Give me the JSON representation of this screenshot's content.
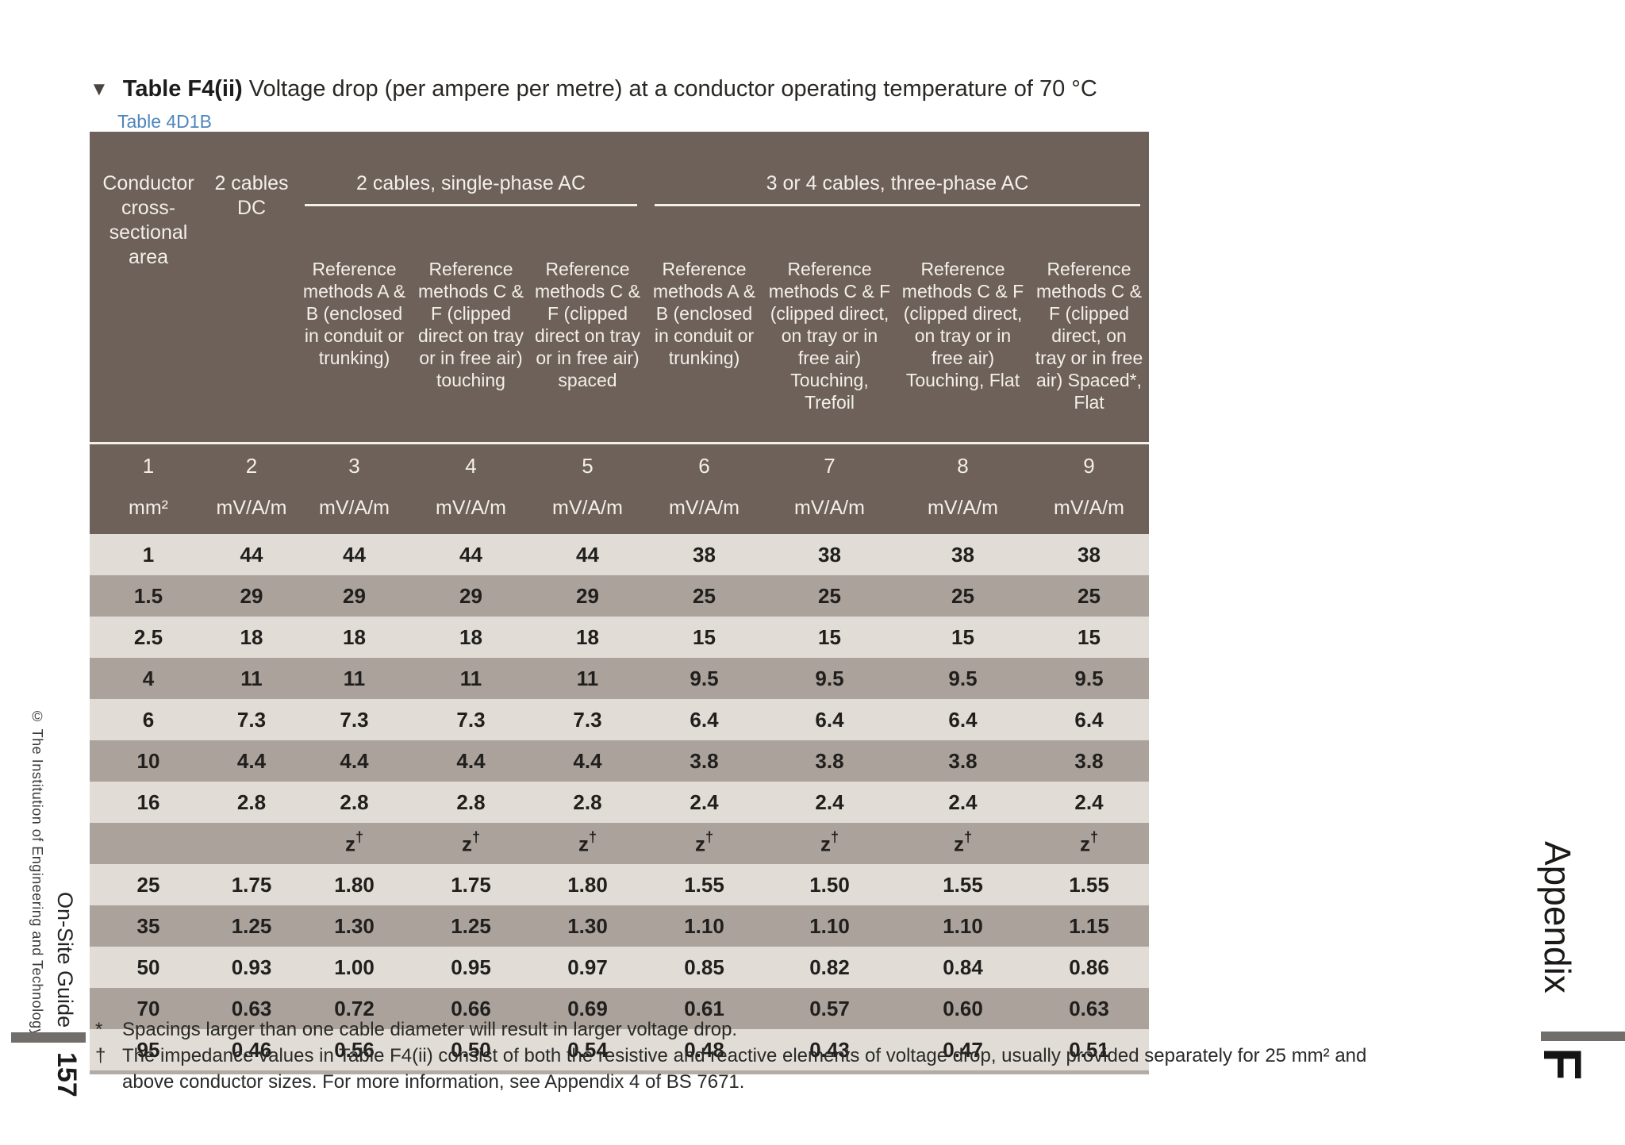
{
  "page": {
    "marker": "▼",
    "title_bold": "Table F4(ii)",
    "title_rest": " Voltage drop (per ampere per metre) at a conductor operating temperature of 70 °C",
    "subtitle": "Table 4D1B"
  },
  "table": {
    "headers": {
      "col1": "Conductor cross-sectional area",
      "col2": "2 cables DC",
      "group1": "2 cables, single-phase AC",
      "group2": "3 or 4 cables, three-phase AC",
      "methods": [
        "Reference methods A & B (enclosed in conduit or trunking)",
        "Reference methods C & F (clipped direct on tray or in free air) touching",
        "Reference methods C & F (clipped direct on tray or in free air) spaced",
        "Reference methods A & B (enclosed in conduit or trunking)",
        "Reference methods C & F (clipped direct, on tray or in free air) Touching, Trefoil",
        "Reference methods C & F (clipped direct, on tray or in free air) Touching, Flat",
        "Reference methods C & F (clipped direct, on tray or in free air) Spaced*, Flat"
      ],
      "col_numbers": [
        "1",
        "2",
        "3",
        "4",
        "5",
        "6",
        "7",
        "8",
        "9"
      ],
      "units": [
        "mm²",
        "mV/A/m",
        "mV/A/m",
        "mV/A/m",
        "mV/A/m",
        "mV/A/m",
        "mV/A/m",
        "mV/A/m",
        "mV/A/m"
      ]
    },
    "rows": [
      {
        "shade": "light",
        "area": "1",
        "values": [
          "44",
          "44",
          "44",
          "44",
          "38",
          "38",
          "38",
          "38"
        ]
      },
      {
        "shade": "dark",
        "area": "1.5",
        "values": [
          "29",
          "29",
          "29",
          "29",
          "25",
          "25",
          "25",
          "25"
        ]
      },
      {
        "shade": "light",
        "area": "2.5",
        "values": [
          "18",
          "18",
          "18",
          "18",
          "15",
          "15",
          "15",
          "15"
        ]
      },
      {
        "shade": "dark",
        "area": "4",
        "values": [
          "11",
          "11",
          "11",
          "11",
          "9.5",
          "9.5",
          "9.5",
          "9.5"
        ]
      },
      {
        "shade": "light",
        "area": "6",
        "values": [
          "7.3",
          "7.3",
          "7.3",
          "7.3",
          "6.4",
          "6.4",
          "6.4",
          "6.4"
        ]
      },
      {
        "shade": "dark",
        "area": "10",
        "values": [
          "4.4",
          "4.4",
          "4.4",
          "4.4",
          "3.8",
          "3.8",
          "3.8",
          "3.8"
        ]
      },
      {
        "shade": "light",
        "area": "16",
        "values": [
          "2.8",
          "2.8",
          "2.8",
          "2.8",
          "2.4",
          "2.4",
          "2.4",
          "2.4"
        ]
      },
      {
        "shade": "dark",
        "area": "",
        "values": [
          "",
          "z†",
          "z†",
          "z†",
          "z†",
          "z†",
          "z†",
          "z†"
        ]
      },
      {
        "shade": "light",
        "area": "25",
        "values": [
          "1.75",
          "1.80",
          "1.75",
          "1.80",
          "1.55",
          "1.50",
          "1.55",
          "1.55"
        ]
      },
      {
        "shade": "dark",
        "area": "35",
        "values": [
          "1.25",
          "1.30",
          "1.25",
          "1.30",
          "1.10",
          "1.10",
          "1.10",
          "1.15"
        ]
      },
      {
        "shade": "light",
        "area": "50",
        "values": [
          "0.93",
          "1.00",
          "0.95",
          "0.97",
          "0.85",
          "0.82",
          "0.84",
          "0.86"
        ]
      },
      {
        "shade": "dark",
        "area": "70",
        "values": [
          "0.63",
          "0.72",
          "0.66",
          "0.69",
          "0.61",
          "0.57",
          "0.60",
          "0.63"
        ]
      },
      {
        "shade": "light",
        "area": "95",
        "values": [
          "0.46",
          "0.56",
          "0.50",
          "0.54",
          "0.48",
          "0.43",
          "0.47",
          "0.51"
        ]
      }
    ]
  },
  "footnotes": [
    {
      "marker": "*",
      "text": "Spacings larger than one cable diameter will result in larger voltage drop."
    },
    {
      "marker": "†",
      "text": "The impedance values in Table F4(ii) consist of both the resistive and reactive elements of voltage drop, usually provided separately for 25 mm² and above conductor sizes. For more information, see Appendix 4 of BS 7671."
    }
  ],
  "sidebar_left": {
    "copyright": "© The Institution of Engineering and Technology",
    "book_title": "On-Site Guide",
    "page_number": "157"
  },
  "sidebar_right": {
    "appendix_label": "Appendix",
    "appendix_letter": "F"
  },
  "colors": {
    "header_bg": "#6d6159",
    "header_text": "#f3efe9",
    "row_light": "#e1ddd6",
    "row_dark": "#aaa29b",
    "subtitle_blue": "#4e86bc",
    "bar_gray": "#716d6a"
  }
}
